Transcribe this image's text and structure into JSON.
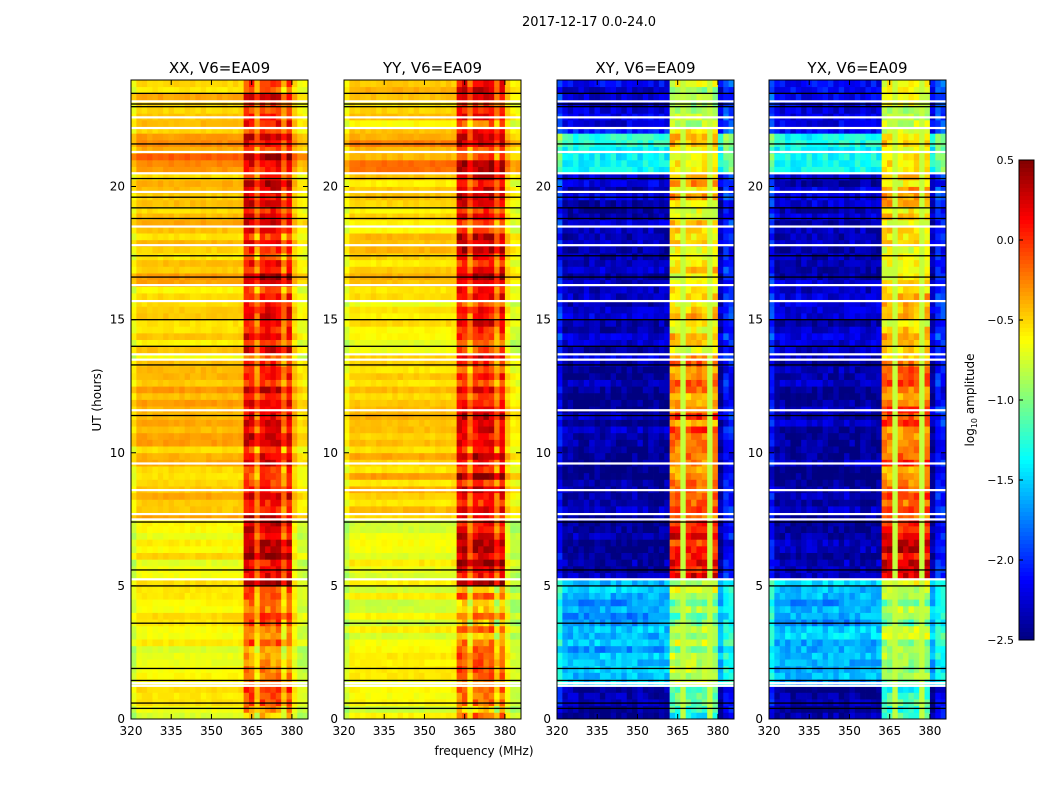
{
  "chart_data": {
    "type": "heatmap",
    "suptitle": "2017-12-17 0.0-24.0",
    "xlabel": "frequency (MHz)",
    "ylabel": "UT (hours)",
    "xlim": [
      320,
      386
    ],
    "ylim": [
      0,
      24
    ],
    "xticks": [
      320,
      335,
      350,
      365,
      380
    ],
    "yticks": [
      0,
      5,
      10,
      15,
      20
    ],
    "colorbar": {
      "label_main": "log",
      "label_sub": "10",
      "label_rest": " amplitude",
      "colormap": "jet",
      "range": [
        -2.5,
        0.5
      ],
      "ticks": [
        "0.5",
        "0.0",
        "−0.5",
        "−1.0",
        "−1.5",
        "−2.0",
        "−2.5"
      ],
      "tick_values": [
        0.5,
        0.0,
        -0.5,
        -1.0,
        -1.5,
        -2.0,
        -2.5
      ]
    },
    "rfi_band_mhz": [
      362,
      381
    ],
    "panels": [
      {
        "title": "XX, V6=EA09",
        "segments": [
          {
            "hours": [
              0,
              5
            ],
            "continuum": -0.62,
            "rfi_band": -0.2
          },
          {
            "hours": [
              5,
              7.4
            ],
            "continuum": -0.6,
            "rfi_band": 0.3
          },
          {
            "hours": [
              7.4,
              11.5
            ],
            "continuum": -0.42,
            "rfi_band": 0.15
          },
          {
            "hours": [
              11.5,
              13.5
            ],
            "continuum": -0.4,
            "rfi_band": 0.1
          },
          {
            "hours": [
              13.5,
              16.2
            ],
            "continuum": -0.55,
            "rfi_band": 0.05
          },
          {
            "hours": [
              16.2,
              18.7
            ],
            "continuum": -0.45,
            "rfi_band": 0.12
          },
          {
            "hours": [
              18.7,
              20.4
            ],
            "continuum": -0.5,
            "rfi_band": 0.1
          },
          {
            "hours": [
              20.4,
              21.7
            ],
            "continuum": -0.25,
            "rfi_band": 0.2
          },
          {
            "hours": [
              21.7,
              24
            ],
            "continuum": -0.45,
            "rfi_band": 0.05
          }
        ]
      },
      {
        "title": "YY, V6=EA09",
        "segments": [
          {
            "hours": [
              0,
              5
            ],
            "continuum": -0.68,
            "rfi_band": -0.3
          },
          {
            "hours": [
              5,
              7.4
            ],
            "continuum": -0.65,
            "rfi_band": 0.3
          },
          {
            "hours": [
              7.4,
              11.5
            ],
            "continuum": -0.45,
            "rfi_band": 0.2
          },
          {
            "hours": [
              11.5,
              13.5
            ],
            "continuum": -0.45,
            "rfi_band": 0.1
          },
          {
            "hours": [
              13.5,
              16.2
            ],
            "continuum": -0.6,
            "rfi_band": 0.05
          },
          {
            "hours": [
              16.2,
              18.7
            ],
            "continuum": -0.5,
            "rfi_band": 0.15
          },
          {
            "hours": [
              18.7,
              20.4
            ],
            "continuum": -0.55,
            "rfi_band": 0.1
          },
          {
            "hours": [
              20.4,
              21.7
            ],
            "continuum": -0.3,
            "rfi_band": 0.15
          },
          {
            "hours": [
              21.7,
              24
            ],
            "continuum": -0.5,
            "rfi_band": 0.05
          }
        ]
      },
      {
        "title": "XY, V6=EA09",
        "segments": [
          {
            "hours": [
              0,
              1.3
            ],
            "continuum": -2.4,
            "rfi_band": -1.2
          },
          {
            "hours": [
              1.3,
              5.2
            ],
            "continuum": -1.6,
            "rfi_band": -0.9
          },
          {
            "hours": [
              5.2,
              7.5
            ],
            "continuum": -2.4,
            "rfi_band": 0.1
          },
          {
            "hours": [
              7.5,
              13.5
            ],
            "continuum": -2.4,
            "rfi_band": -0.2
          },
          {
            "hours": [
              13.5,
              20.5
            ],
            "continuum": -2.3,
            "rfi_band": -0.5
          },
          {
            "hours": [
              20.5,
              22
            ],
            "continuum": -1.3,
            "rfi_band": -0.5
          },
          {
            "hours": [
              22,
              24
            ],
            "continuum": -2.2,
            "rfi_band": -0.8
          }
        ]
      },
      {
        "title": "YX, V6=EA09",
        "segments": [
          {
            "hours": [
              0,
              1.3
            ],
            "continuum": -2.4,
            "rfi_band": -1.2
          },
          {
            "hours": [
              1.3,
              5.2
            ],
            "continuum": -1.6,
            "rfi_band": -0.9
          },
          {
            "hours": [
              5.2,
              7.5
            ],
            "continuum": -2.4,
            "rfi_band": 0.1
          },
          {
            "hours": [
              7.5,
              13.5
            ],
            "continuum": -2.4,
            "rfi_band": -0.2
          },
          {
            "hours": [
              13.5,
              20.5
            ],
            "continuum": -2.3,
            "rfi_band": -0.5
          },
          {
            "hours": [
              20.5,
              22
            ],
            "continuum": -1.3,
            "rfi_band": -0.5
          },
          {
            "hours": [
              22,
              24
            ],
            "continuum": -2.2,
            "rfi_band": -0.8
          }
        ]
      }
    ],
    "flagged_hours_white": [
      1.25,
      1.35,
      5.25,
      7.5,
      7.7,
      8.6,
      9.6,
      11.6,
      13.5,
      13.7,
      15.7,
      16.3,
      17.8,
      18.5,
      19.8,
      20.5,
      21.3,
      22.2,
      22.6,
      23.2
    ],
    "flagged_hours_black": [
      0.4,
      0.6,
      1.45,
      1.9,
      3.6,
      5.0,
      5.6,
      7.4,
      11.4,
      13.3,
      14.0,
      15.0,
      16.6,
      17.4,
      18.8,
      19.2,
      19.6,
      20.3,
      21.6,
      23.0,
      23.1,
      23.5
    ]
  }
}
